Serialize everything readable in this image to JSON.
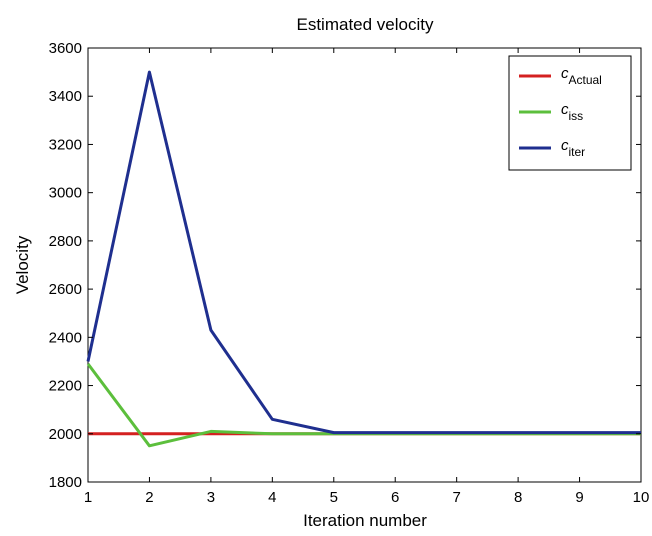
{
  "chart_data": {
    "type": "line",
    "title": "Estimated velocity",
    "xlabel": "Iteration number",
    "ylabel": "Velocity",
    "xlim": [
      1,
      10
    ],
    "ylim": [
      1800,
      3600
    ],
    "xticks": [
      1,
      2,
      3,
      4,
      5,
      6,
      7,
      8,
      9,
      10
    ],
    "yticks": [
      1800,
      2000,
      2200,
      2400,
      2600,
      2800,
      3000,
      3200,
      3400,
      3600
    ],
    "grid": false,
    "legend_position": "top-right",
    "x": [
      1,
      2,
      3,
      4,
      5,
      6,
      7,
      8,
      9,
      10
    ],
    "series": [
      {
        "name_main": "c",
        "name_sub": "Actual",
        "color": "#d42020",
        "values": [
          2000,
          2000,
          2000,
          2000,
          2000,
          2000,
          2000,
          2000,
          2000,
          2000
        ]
      },
      {
        "name_main": "c",
        "name_sub": "iss",
        "color": "#5cbf3c",
        "values": [
          2290,
          1950,
          2010,
          2000,
          2000,
          2000,
          2000,
          2000,
          2000,
          2000
        ]
      },
      {
        "name_main": "c",
        "name_sub": "iter",
        "color": "#1f2f8f",
        "values": [
          2300,
          3500,
          2430,
          2060,
          2005,
          2005,
          2005,
          2005,
          2005,
          2005
        ]
      }
    ]
  }
}
